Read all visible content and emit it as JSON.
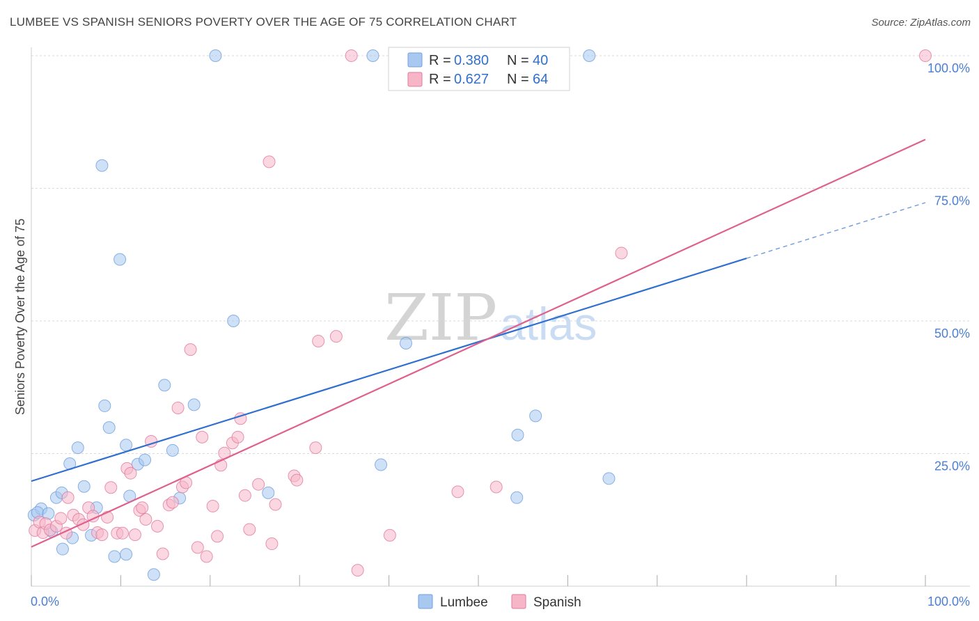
{
  "title": "LUMBEE VS SPANISH SENIORS POVERTY OVER THE AGE OF 75 CORRELATION CHART",
  "source": "Source: ZipAtlas.com",
  "watermark": {
    "zip": "ZIP",
    "atlas": "atlas"
  },
  "legend": {
    "r_label": "R =",
    "n_label": "N =",
    "rows": [
      {
        "name": "Lumbee",
        "r": "0.380",
        "n": "40",
        "color": "#a8c8f0",
        "edge": "#6f9fe0"
      },
      {
        "name": "Spanish",
        "r": "0.627",
        "n": "64",
        "color": "#f7b6c8",
        "edge": "#e07aa0"
      }
    ]
  },
  "bottom_legend": [
    {
      "name": "Lumbee",
      "color": "#a8c8f0",
      "edge": "#6f9fe0"
    },
    {
      "name": "Spanish",
      "color": "#f7b6c8",
      "edge": "#e07aa0"
    }
  ],
  "chart_data": {
    "type": "scatter",
    "xlabel": "",
    "ylabel": "Seniors Poverty Over the Age of 75",
    "xlim": [
      0,
      100
    ],
    "ylim": [
      0,
      100
    ],
    "x_tick_labels": [
      "0.0%",
      "100.0%"
    ],
    "y_ticks": [
      25,
      50,
      75,
      100
    ],
    "y_tick_labels": [
      "25.0%",
      "50.0%",
      "75.0%",
      "100.0%"
    ],
    "grid": true,
    "legend_position": "top-center",
    "series": [
      {
        "name": "Lumbee",
        "color": "#a8c8f0",
        "edge": "#6f9fe0",
        "line_color": "#2f6fcf",
        "trend": {
          "x0": 0,
          "y0": 19.8,
          "x1": 80,
          "y1": 61.8,
          "dash_to_x": 100,
          "dash_to_y": 72.3
        },
        "points": [
          [
            0.3,
            13.4
          ],
          [
            1.1,
            14.6
          ],
          [
            0.7,
            13.9
          ],
          [
            1.9,
            13.7
          ],
          [
            2.3,
            10.3
          ],
          [
            2.8,
            16.7
          ],
          [
            3.4,
            17.6
          ],
          [
            3.5,
            7.0
          ],
          [
            4.3,
            23.1
          ],
          [
            4.6,
            9.1
          ],
          [
            5.2,
            26.1
          ],
          [
            5.9,
            18.8
          ],
          [
            6.7,
            9.6
          ],
          [
            7.3,
            14.8
          ],
          [
            8.2,
            34.0
          ],
          [
            8.7,
            29.9
          ],
          [
            9.3,
            5.6
          ],
          [
            10.6,
            26.6
          ],
          [
            11.0,
            17.0
          ],
          [
            11.9,
            23.0
          ],
          [
            12.7,
            23.8
          ],
          [
            13.7,
            2.2
          ],
          [
            14.9,
            37.9
          ],
          [
            15.8,
            25.6
          ],
          [
            16.6,
            16.6
          ],
          [
            18.2,
            34.2
          ],
          [
            7.9,
            79.3
          ],
          [
            9.9,
            61.6
          ],
          [
            20.6,
            100.0
          ],
          [
            22.6,
            50.0
          ],
          [
            26.5,
            17.6
          ],
          [
            38.2,
            100.0
          ],
          [
            39.1,
            22.9
          ],
          [
            41.9,
            45.8
          ],
          [
            54.4,
            28.5
          ],
          [
            56.4,
            32.1
          ],
          [
            54.3,
            16.7
          ],
          [
            64.6,
            20.3
          ],
          [
            62.4,
            100.0
          ],
          [
            10.6,
            6.0
          ]
        ]
      },
      {
        "name": "Spanish",
        "color": "#f7b6c8",
        "edge": "#e07aa0",
        "line_color": "#e0608d",
        "trend": {
          "x0": 0,
          "y0": 7.4,
          "x1": 100,
          "y1": 84.2
        },
        "points": [
          [
            0.4,
            10.5
          ],
          [
            0.9,
            12.1
          ],
          [
            1.3,
            10.1
          ],
          [
            1.6,
            11.8
          ],
          [
            2.1,
            10.6
          ],
          [
            2.8,
            11.3
          ],
          [
            3.3,
            12.8
          ],
          [
            3.9,
            10.0
          ],
          [
            4.1,
            16.7
          ],
          [
            4.7,
            13.4
          ],
          [
            5.3,
            12.6
          ],
          [
            5.8,
            11.6
          ],
          [
            6.4,
            14.8
          ],
          [
            6.9,
            13.2
          ],
          [
            7.4,
            10.1
          ],
          [
            7.9,
            9.7
          ],
          [
            8.5,
            13.0
          ],
          [
            8.9,
            18.6
          ],
          [
            9.6,
            10.0
          ],
          [
            10.2,
            10.0
          ],
          [
            10.7,
            22.2
          ],
          [
            11.1,
            21.3
          ],
          [
            11.6,
            9.7
          ],
          [
            12.1,
            14.3
          ],
          [
            12.4,
            14.8
          ],
          [
            12.8,
            12.6
          ],
          [
            13.4,
            27.3
          ],
          [
            14.1,
            11.3
          ],
          [
            14.7,
            6.1
          ],
          [
            15.4,
            15.3
          ],
          [
            15.8,
            15.8
          ],
          [
            16.4,
            33.6
          ],
          [
            16.9,
            18.7
          ],
          [
            17.3,
            19.5
          ],
          [
            17.8,
            44.6
          ],
          [
            18.6,
            7.3
          ],
          [
            19.1,
            28.1
          ],
          [
            19.6,
            5.6
          ],
          [
            20.3,
            15.1
          ],
          [
            20.8,
            9.4
          ],
          [
            21.2,
            22.8
          ],
          [
            21.6,
            25.1
          ],
          [
            22.5,
            27.0
          ],
          [
            23.1,
            28.1
          ],
          [
            23.4,
            31.6
          ],
          [
            23.9,
            17.1
          ],
          [
            24.4,
            10.7
          ],
          [
            25.4,
            19.2
          ],
          [
            26.9,
            8.0
          ],
          [
            27.3,
            15.4
          ],
          [
            29.4,
            20.8
          ],
          [
            29.7,
            20.0
          ],
          [
            31.8,
            26.1
          ],
          [
            32.1,
            46.2
          ],
          [
            34.1,
            47.1
          ],
          [
            36.5,
            3.0
          ],
          [
            40.1,
            9.6
          ],
          [
            41.3,
            100.0
          ],
          [
            47.7,
            17.8
          ],
          [
            52.0,
            18.7
          ],
          [
            66.0,
            62.8
          ],
          [
            100.0,
            100.0
          ],
          [
            35.8,
            100.0
          ],
          [
            26.6,
            80.0
          ]
        ]
      }
    ]
  }
}
